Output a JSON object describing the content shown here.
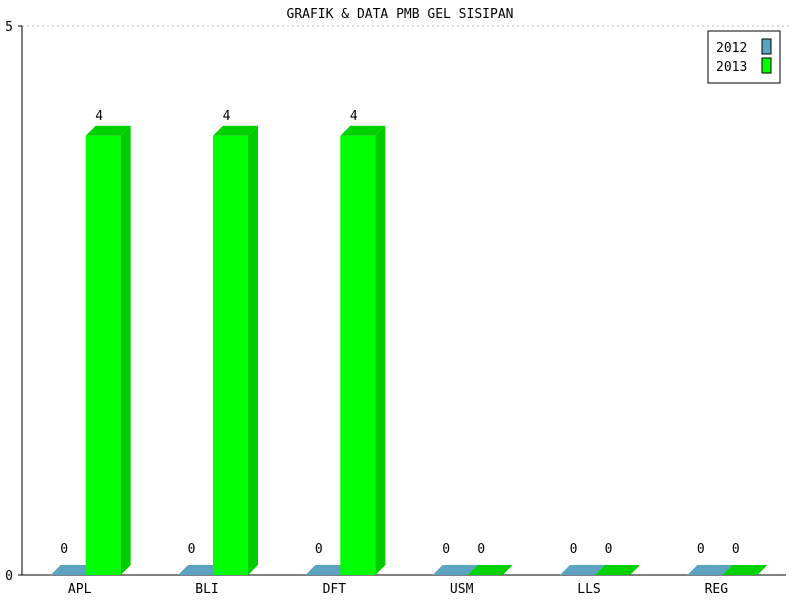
{
  "chart_data": {
    "type": "bar",
    "title": "GRAFIK & DATA PMB GEL SISIPAN",
    "categories": [
      "APL",
      "BLI",
      "DFT",
      "USM",
      "LLS",
      "REG"
    ],
    "series": [
      {
        "name": "2012",
        "color": "#5ba3c0",
        "values": [
          0,
          0,
          0,
          0,
          0,
          0
        ]
      },
      {
        "name": "2013",
        "color": "#00ff00",
        "values": [
          4,
          4,
          4,
          0,
          0,
          0
        ]
      }
    ],
    "ylim": [
      0,
      5
    ],
    "y_ticks": [
      "0",
      "5"
    ],
    "legend_position": "top-right",
    "grid": false,
    "data_labels": true
  }
}
